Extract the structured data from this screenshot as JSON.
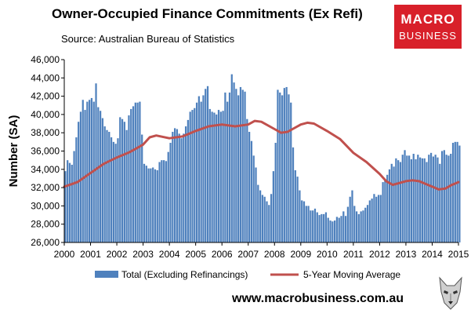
{
  "header": {
    "title": "Owner-Occupied Finance Commitments (Ex Refi)",
    "source": "Source: Australian  Bureau of Statistics"
  },
  "logo": {
    "line1": "MACRO",
    "line2": "BUSINESS"
  },
  "footer": {
    "url": "www.macrobusiness.com.au"
  },
  "colors": {
    "bar": "#4f81bd",
    "line": "#c0504d",
    "logo": "#d8202a"
  },
  "chart_data": {
    "type": "bar",
    "title": "Owner-Occupied Finance Commitments (Ex Refi)",
    "ylabel": "Number (SA)",
    "xlabel": "",
    "ylim": [
      26000,
      46000
    ],
    "xlim": [
      2000,
      2015
    ],
    "grid": false,
    "legend_position": "bottom",
    "x_ticks": [
      "2000",
      "2001",
      "2002",
      "2003",
      "2004",
      "2005",
      "2006",
      "2007",
      "2008",
      "2009",
      "2010",
      "2011",
      "2012",
      "2013",
      "2014",
      "2015"
    ],
    "y_ticks": [
      "26,000",
      "28,000",
      "30,000",
      "32,000",
      "34,000",
      "36,000",
      "38,000",
      "40,000",
      "42,000",
      "44,000",
      "46,000"
    ],
    "series": [
      {
        "name": "Total (Excluding Refinancings)",
        "type": "bar",
        "start": "2000-01",
        "frequency": "monthly",
        "values": [
          33800,
          35000,
          34700,
          34500,
          36000,
          37500,
          39200,
          40300,
          41600,
          40500,
          41400,
          41600,
          41800,
          41400,
          43400,
          40800,
          40400,
          39600,
          38700,
          38300,
          38100,
          37500,
          37000,
          36800,
          37400,
          39700,
          39500,
          39200,
          38300,
          39900,
          40600,
          40900,
          41300,
          41300,
          41400,
          37800,
          34600,
          34400,
          34100,
          34100,
          34200,
          34000,
          33900,
          34800,
          35000,
          35000,
          34900,
          35900,
          36900,
          38100,
          38500,
          38400,
          37900,
          37400,
          37900,
          38700,
          39400,
          40300,
          40500,
          40700,
          41300,
          42000,
          41400,
          42100,
          42800,
          43100,
          40600,
          40300,
          40200,
          40000,
          40500,
          40300,
          40400,
          42400,
          41400,
          42400,
          44400,
          43500,
          42800,
          42100,
          43000,
          42700,
          42500,
          39500,
          38100,
          37100,
          35500,
          34200,
          32300,
          31700,
          31200,
          31000,
          30500,
          30100,
          31300,
          33800,
          36900,
          42700,
          42400,
          42100,
          42900,
          43000,
          42200,
          41300,
          36400,
          33900,
          33200,
          31700,
          30600,
          30500,
          30000,
          30000,
          29500,
          29500,
          29700,
          29300,
          29000,
          29100,
          29100,
          29300,
          28700,
          28400,
          28300,
          28400,
          28800,
          28700,
          28900,
          29400,
          28900,
          29900,
          31000,
          31700,
          30000,
          29400,
          29100,
          29400,
          29500,
          29800,
          30100,
          30600,
          30800,
          31300,
          31000,
          31200,
          31200,
          32600,
          32800,
          33400,
          34000,
          34600,
          34300,
          35200,
          35000,
          34800,
          35600,
          36100,
          35500,
          35500,
          35100,
          35700,
          35100,
          35600,
          35300,
          35200,
          35200,
          34800,
          35600,
          35800,
          35400,
          35600,
          35300,
          34600,
          36000,
          36100,
          35600,
          35500,
          35700,
          36900,
          37000,
          37000,
          36600
        ]
      },
      {
        "name": "5-Year Moving Average",
        "type": "line",
        "points": [
          [
            2000.0,
            32100
          ],
          [
            2000.5,
            32600
          ],
          [
            2001.0,
            33600
          ],
          [
            2001.5,
            34600
          ],
          [
            2002.0,
            35300
          ],
          [
            2002.5,
            35900
          ],
          [
            2003.0,
            36700
          ],
          [
            2003.25,
            37500
          ],
          [
            2003.5,
            37700
          ],
          [
            2004.0,
            37400
          ],
          [
            2004.5,
            37600
          ],
          [
            2005.0,
            38200
          ],
          [
            2005.5,
            38700
          ],
          [
            2006.0,
            38900
          ],
          [
            2006.5,
            38700
          ],
          [
            2007.0,
            38900
          ],
          [
            2007.25,
            39300
          ],
          [
            2007.5,
            39200
          ],
          [
            2008.0,
            38400
          ],
          [
            2008.25,
            38000
          ],
          [
            2008.5,
            38100
          ],
          [
            2009.0,
            38900
          ],
          [
            2009.25,
            39100
          ],
          [
            2009.5,
            39000
          ],
          [
            2010.0,
            38200
          ],
          [
            2010.5,
            37300
          ],
          [
            2011.0,
            35800
          ],
          [
            2011.5,
            34800
          ],
          [
            2012.0,
            33500
          ],
          [
            2012.25,
            32700
          ],
          [
            2012.5,
            32300
          ],
          [
            2013.0,
            32700
          ],
          [
            2013.25,
            32800
          ],
          [
            2013.5,
            32700
          ],
          [
            2014.0,
            32100
          ],
          [
            2014.25,
            31800
          ],
          [
            2014.5,
            31900
          ],
          [
            2014.75,
            32300
          ],
          [
            2015.0,
            32600
          ]
        ]
      }
    ]
  }
}
